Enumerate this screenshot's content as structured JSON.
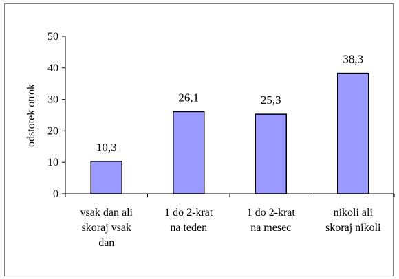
{
  "chart_data": {
    "type": "bar",
    "categories": [
      [
        "vsak dan ali",
        "skoraj vsak",
        "dan"
      ],
      [
        "1 do 2-krat",
        "na teden"
      ],
      [
        "1 do 2-krat",
        "na mesec"
      ],
      [
        "nikoli ali",
        "skoraj nikoli"
      ]
    ],
    "values": [
      10.3,
      26.1,
      25.3,
      38.3
    ],
    "value_labels": [
      "10,3",
      "26,1",
      "25,3",
      "38,3"
    ],
    "ylabel": "odstotek otrok",
    "ylim": [
      0,
      50
    ],
    "yticks": [
      0,
      10,
      20,
      30,
      40,
      50
    ],
    "grid": false,
    "legend": "none",
    "bar_color": "#9999ff",
    "bar_edge_color": "#000000"
  }
}
